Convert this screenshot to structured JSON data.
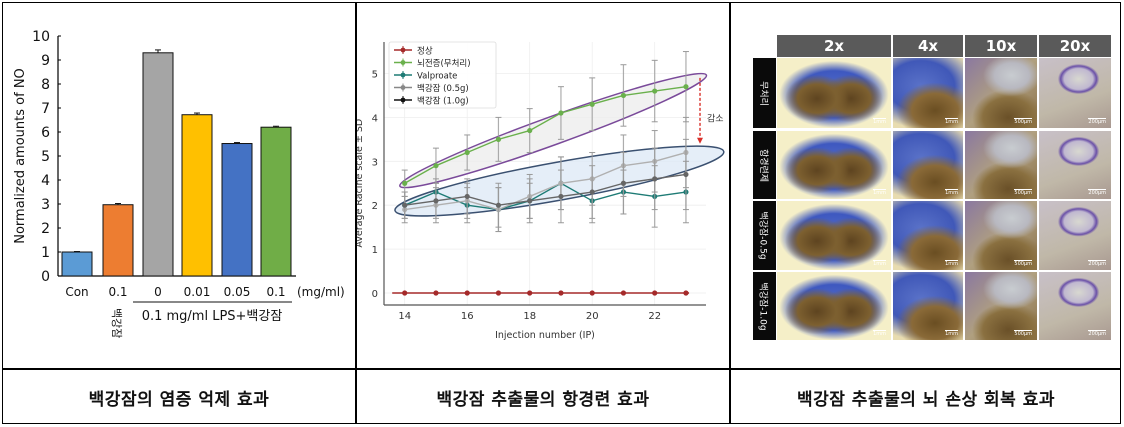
{
  "panels": {
    "left": {
      "caption": "백강잠의 염증 억제 효과"
    },
    "middle": {
      "caption": "백강잠 추출물의 항경련 효과"
    },
    "right": {
      "caption": "백강잠 추출물의 뇌 손상 회복 효과",
      "columns": [
        "2x",
        "4x",
        "10x",
        "20x"
      ],
      "rows": [
        "무처리",
        "항경련제",
        "백강잠-0.5g",
        "백강잠-1.0g"
      ],
      "scale_bars": [
        "1mm",
        "1mm",
        "500μm",
        "200μm"
      ],
      "colors": {
        "header_bg": "#5a5a5a",
        "label_bg": "#0a0a0a",
        "stain_blue": "#4a5fc0",
        "tissue_brown": "#7a5a2a",
        "background_yellow": "#f0e6b0"
      }
    }
  },
  "chart_data": [
    {
      "type": "bar",
      "title": "",
      "xlabel": "",
      "ylabel": "Normalized amounts of NO",
      "ylim": [
        0,
        10
      ],
      "yticks": [
        0,
        1,
        2,
        3,
        4,
        5,
        6,
        7,
        8,
        9,
        10
      ],
      "categories": [
        "Con",
        "0.1",
        "0",
        "0.01",
        "0.05",
        "0.1"
      ],
      "unit_label": "(mg/ml)",
      "values": [
        1.0,
        2.97,
        9.3,
        6.72,
        5.52,
        6.2
      ],
      "errors": [
        0.02,
        0.05,
        0.12,
        0.07,
        0.04,
        0.04
      ],
      "colors": [
        "#5b9bd5",
        "#ed7d31",
        "#a5a5a5",
        "#ffc000",
        "#4472c4",
        "#70ad47"
      ],
      "group_labels": [
        {
          "text": "백강잠",
          "under": [
            "0.1"
          ],
          "orientation": "vertical"
        },
        {
          "text": "0.1 mg/ml LPS+백강잠",
          "under": [
            "0",
            "0.01",
            "0.05",
            "0.1"
          ]
        }
      ],
      "grid": false
    },
    {
      "type": "line",
      "title": "",
      "xlabel": "Injection number (IP)",
      "ylabel": "Average Racine scale ± SD",
      "xlim": [
        13.6,
        23.6
      ],
      "ylim": [
        -0.3,
        5.6
      ],
      "xticks": [
        14,
        16,
        18,
        20,
        22
      ],
      "yticks": [
        0,
        1,
        2,
        3,
        4,
        5
      ],
      "x": [
        14,
        15,
        16,
        17,
        18,
        19,
        20,
        21,
        22,
        23
      ],
      "series": [
        {
          "name": "정상",
          "color": "#a52a2a",
          "values": [
            0,
            0,
            0,
            0,
            0,
            0,
            0,
            0,
            0,
            0
          ],
          "sd": [
            0,
            0,
            0,
            0,
            0,
            0,
            0,
            0,
            0,
            0
          ]
        },
        {
          "name": "뇌전증(무처리)",
          "color": "#6ab04c",
          "values": [
            2.5,
            2.9,
            3.2,
            3.5,
            3.7,
            4.1,
            4.3,
            4.5,
            4.6,
            4.7
          ],
          "sd": [
            0.3,
            0.4,
            0.4,
            0.5,
            0.5,
            0.6,
            0.6,
            0.7,
            0.7,
            0.8
          ]
        },
        {
          "name": "Valproate",
          "color": "#1e7b75",
          "values": [
            2.0,
            2.3,
            2.0,
            1.9,
            2.1,
            2.5,
            2.1,
            2.3,
            2.2,
            2.3
          ],
          "sd": [
            0.3,
            0.3,
            0.4,
            0.5,
            0.4,
            0.6,
            0.5,
            0.5,
            0.7,
            0.7
          ]
        },
        {
          "name": "백강잠 (0.5g)",
          "color": "#b0b0b0",
          "values": [
            1.9,
            2.0,
            2.1,
            1.9,
            2.2,
            2.5,
            2.6,
            2.9,
            3.0,
            3.2
          ],
          "sd": [
            0.3,
            0.4,
            0.4,
            0.5,
            0.5,
            0.6,
            0.6,
            0.7,
            0.7,
            0.8
          ]
        },
        {
          "name": "백강잠 (1.0g)",
          "color": "#666666",
          "values": [
            2.0,
            2.1,
            2.2,
            2.0,
            2.1,
            2.2,
            2.3,
            2.5,
            2.6,
            2.7
          ],
          "sd": [
            0.3,
            0.4,
            0.4,
            0.5,
            0.5,
            0.6,
            0.6,
            0.7,
            0.7,
            0.8
          ]
        }
      ],
      "annotations": [
        {
          "type": "ellipse",
          "target": "뇌전증(무처리)",
          "color": "#7a4a9a",
          "fill": "#eeeeee"
        },
        {
          "type": "ellipse",
          "target": "treatment groups",
          "color": "#3a5070",
          "fill": "#dce8f6"
        },
        {
          "type": "arrow",
          "text": "감소",
          "color": "#d9302a",
          "style": "dashed",
          "from_y": 4.9,
          "to_y": 3.4
        }
      ],
      "legend_position": "upper left",
      "grid": true
    }
  ]
}
